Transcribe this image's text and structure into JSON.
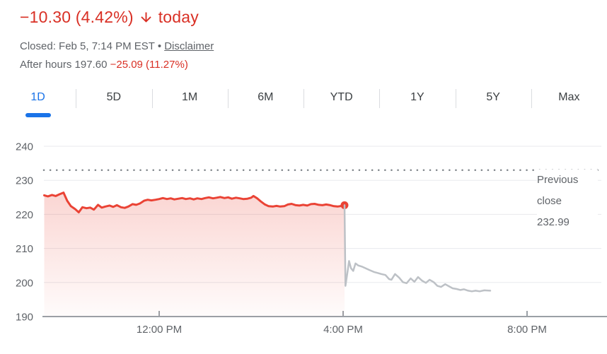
{
  "header": {
    "change_text": "−10.30 (4.42%)",
    "arrow_icon": "arrow-down",
    "period_label": "today",
    "closed_text": "Closed: Feb 5, 7:14 PM EST",
    "separator": "•",
    "disclaimer_label": "Disclaimer",
    "after_hours_text": "After hours 197.60",
    "after_hours_change": "−25.09 (11.27%)"
  },
  "tabs": {
    "items": [
      {
        "label": "1D",
        "active": true
      },
      {
        "label": "5D",
        "active": false
      },
      {
        "label": "1M",
        "active": false
      },
      {
        "label": "6M",
        "active": false
      },
      {
        "label": "YTD",
        "active": false
      },
      {
        "label": "1Y",
        "active": false
      },
      {
        "label": "5Y",
        "active": false
      },
      {
        "label": "Max",
        "active": false
      }
    ]
  },
  "colors": {
    "text_red": "#d93025",
    "line_red": "#ea4335",
    "line_gray": "#bdc1c6",
    "accent_blue": "#1a73e8",
    "grid": "#e8eaed",
    "axis": "#9aa0a6",
    "dotted": "#80868b",
    "secondary_text": "#5f6368",
    "tab_text": "#3c4043"
  },
  "chart_data": {
    "type": "line",
    "ylim": [
      190,
      240
    ],
    "y_ticks": [
      240,
      230,
      220,
      210,
      200,
      190
    ],
    "x_ticks": [
      {
        "t": 12,
        "label": "12:00 PM"
      },
      {
        "t": 16,
        "label": "4:00 PM"
      },
      {
        "t": 20,
        "label": "8:00 PM"
      }
    ],
    "previous_close": 232.99,
    "previous_close_label": "Previous close",
    "previous_close_value_text": "232.99",
    "grid_on": true,
    "series": [
      {
        "name": "regular-session",
        "color": "#ea4335",
        "fill": true,
        "end_dot": true,
        "points": [
          [
            9.5,
            225.6
          ],
          [
            9.58,
            225.3
          ],
          [
            9.67,
            225.7
          ],
          [
            9.75,
            225.4
          ],
          [
            9.83,
            225.9
          ],
          [
            9.92,
            226.4
          ],
          [
            10.0,
            224.0
          ],
          [
            10.08,
            222.4
          ],
          [
            10.17,
            221.6
          ],
          [
            10.25,
            220.6
          ],
          [
            10.33,
            222.1
          ],
          [
            10.42,
            221.8
          ],
          [
            10.5,
            222.0
          ],
          [
            10.58,
            221.4
          ],
          [
            10.67,
            222.8
          ],
          [
            10.75,
            222.0
          ],
          [
            10.83,
            222.3
          ],
          [
            10.92,
            222.6
          ],
          [
            11.0,
            222.2
          ],
          [
            11.08,
            222.7
          ],
          [
            11.17,
            222.1
          ],
          [
            11.25,
            221.9
          ],
          [
            11.33,
            222.3
          ],
          [
            11.42,
            223.0
          ],
          [
            11.5,
            222.8
          ],
          [
            11.58,
            223.2
          ],
          [
            11.67,
            224.0
          ],
          [
            11.75,
            224.3
          ],
          [
            11.83,
            224.1
          ],
          [
            11.92,
            224.3
          ],
          [
            12.0,
            224.5
          ],
          [
            12.08,
            224.8
          ],
          [
            12.17,
            224.5
          ],
          [
            12.25,
            224.7
          ],
          [
            12.33,
            224.4
          ],
          [
            12.42,
            224.6
          ],
          [
            12.5,
            224.8
          ],
          [
            12.58,
            224.5
          ],
          [
            12.67,
            224.7
          ],
          [
            12.75,
            224.4
          ],
          [
            12.83,
            224.7
          ],
          [
            12.92,
            224.5
          ],
          [
            13.0,
            224.8
          ],
          [
            13.08,
            225.0
          ],
          [
            13.17,
            224.7
          ],
          [
            13.25,
            224.9
          ],
          [
            13.33,
            225.1
          ],
          [
            13.42,
            224.8
          ],
          [
            13.5,
            225.0
          ],
          [
            13.58,
            224.6
          ],
          [
            13.67,
            224.9
          ],
          [
            13.75,
            224.7
          ],
          [
            13.83,
            224.5
          ],
          [
            13.92,
            224.6
          ],
          [
            14.0,
            224.9
          ],
          [
            14.05,
            225.4
          ],
          [
            14.13,
            224.7
          ],
          [
            14.22,
            223.7
          ],
          [
            14.3,
            222.9
          ],
          [
            14.38,
            222.4
          ],
          [
            14.47,
            222.3
          ],
          [
            14.55,
            222.5
          ],
          [
            14.63,
            222.3
          ],
          [
            14.72,
            222.4
          ],
          [
            14.8,
            222.9
          ],
          [
            14.88,
            223.1
          ],
          [
            14.97,
            222.7
          ],
          [
            15.05,
            222.6
          ],
          [
            15.13,
            222.8
          ],
          [
            15.22,
            222.6
          ],
          [
            15.3,
            223.0
          ],
          [
            15.38,
            223.1
          ],
          [
            15.47,
            222.8
          ],
          [
            15.55,
            222.7
          ],
          [
            15.63,
            222.9
          ],
          [
            15.72,
            222.7
          ],
          [
            15.8,
            222.4
          ],
          [
            15.88,
            222.3
          ],
          [
            15.97,
            222.5
          ],
          [
            16.03,
            222.69
          ]
        ]
      },
      {
        "name": "after-hours",
        "color": "#bdc1c6",
        "fill": false,
        "end_dot": false,
        "points": [
          [
            16.03,
            222.69
          ],
          [
            16.05,
            199.0
          ],
          [
            16.1,
            203.5
          ],
          [
            16.13,
            206.3
          ],
          [
            16.17,
            204.2
          ],
          [
            16.22,
            203.4
          ],
          [
            16.27,
            205.6
          ],
          [
            16.33,
            205.0
          ],
          [
            16.42,
            204.6
          ],
          [
            16.5,
            204.1
          ],
          [
            16.58,
            203.6
          ],
          [
            16.67,
            203.1
          ],
          [
            16.75,
            202.8
          ],
          [
            16.83,
            202.5
          ],
          [
            16.92,
            202.2
          ],
          [
            17.0,
            201.0
          ],
          [
            17.05,
            200.8
          ],
          [
            17.13,
            202.5
          ],
          [
            17.22,
            201.4
          ],
          [
            17.3,
            200.1
          ],
          [
            17.38,
            199.8
          ],
          [
            17.47,
            201.2
          ],
          [
            17.55,
            200.2
          ],
          [
            17.63,
            201.6
          ],
          [
            17.72,
            200.5
          ],
          [
            17.8,
            199.9
          ],
          [
            17.88,
            200.8
          ],
          [
            17.97,
            200.1
          ],
          [
            18.05,
            199.0
          ],
          [
            18.13,
            198.7
          ],
          [
            18.22,
            199.5
          ],
          [
            18.3,
            198.9
          ],
          [
            18.38,
            198.3
          ],
          [
            18.47,
            198.1
          ],
          [
            18.55,
            197.8
          ],
          [
            18.63,
            198.0
          ],
          [
            18.72,
            197.6
          ],
          [
            18.8,
            197.4
          ],
          [
            18.88,
            197.6
          ],
          [
            18.97,
            197.4
          ],
          [
            19.07,
            197.7
          ],
          [
            19.2,
            197.6
          ]
        ]
      }
    ]
  }
}
